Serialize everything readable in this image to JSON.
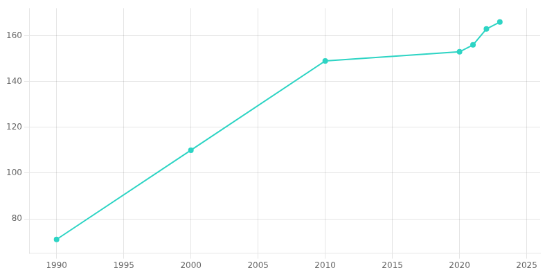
{
  "chart_data": {
    "type": "line",
    "x": [
      1990,
      2000,
      2010,
      2020,
      2021,
      2022,
      2023
    ],
    "values": [
      71,
      110,
      149,
      153,
      156,
      163,
      166
    ],
    "color": "#2dd4c4",
    "marker": "circle",
    "xlim": [
      1988,
      2026
    ],
    "ylim": [
      65,
      172
    ],
    "xticks": [
      1990,
      1995,
      2000,
      2005,
      2010,
      2015,
      2020,
      2025
    ],
    "yticks": [
      80,
      100,
      120,
      140,
      160
    ],
    "grid": true
  }
}
